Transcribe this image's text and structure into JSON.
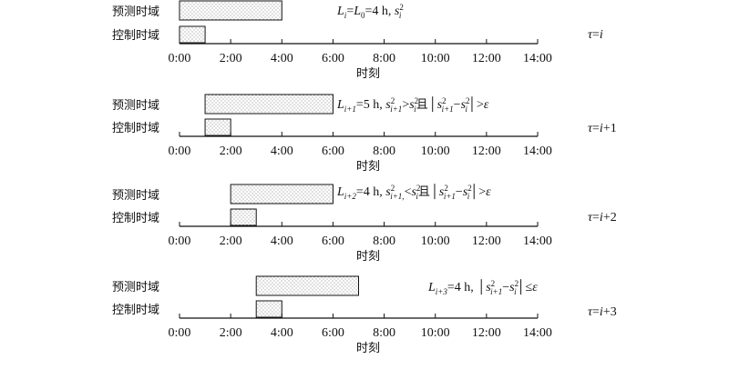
{
  "labels": {
    "prediction_horizon": "预测时域",
    "control_horizon": "控制时域",
    "axis_title": "时刻"
  },
  "ticks": [
    "0:00",
    "2:00",
    "4:00",
    "6:00",
    "8:00",
    "10:00",
    "12:00",
    "14:00"
  ],
  "axis_range_hours": [
    0,
    14
  ],
  "colors": {
    "stroke": "#111111",
    "dots": "#6a6a6a"
  },
  "panels": [
    {
      "prediction": {
        "start_h": 0,
        "end_h": 4
      },
      "control": {
        "start_h": 0,
        "end_h": 1
      },
      "condition": {
        "parts": [
          {
            "t": "L",
            "i": true
          },
          {
            "t": "i",
            "i": true,
            "sub": true
          },
          {
            "t": "=",
            "i": false
          },
          {
            "t": "L",
            "i": true
          },
          {
            "t": "0",
            "i": false,
            "sub": true
          },
          {
            "t": "=4 h, ",
            "i": false
          },
          {
            "t": "s",
            "i": true
          },
          {
            "t": "2",
            "i": false,
            "supsub": "i"
          }
        ]
      },
      "tau": {
        "parts": [
          {
            "t": "τ",
            "i": true
          },
          {
            "t": "=",
            "i": false
          },
          {
            "t": "i",
            "i": true
          }
        ]
      }
    },
    {
      "prediction": {
        "start_h": 1,
        "end_h": 6
      },
      "control": {
        "start_h": 1,
        "end_h": 2
      },
      "condition": {
        "parts": [
          {
            "t": "L",
            "i": true
          },
          {
            "t": "i+1",
            "i": true,
            "sub": true
          },
          {
            "t": "=5 h, ",
            "i": false
          },
          {
            "t": "s",
            "i": true
          },
          {
            "t": "2",
            "i": false,
            "supsub": "i+1"
          },
          {
            "t": ">",
            "i": false
          },
          {
            "t": "s",
            "i": true
          },
          {
            "t": "2",
            "i": false,
            "supsub": "i"
          },
          {
            "t": "且",
            "i": false,
            "cn": true
          },
          {
            "t": "│",
            "i": false
          },
          {
            "t": "s",
            "i": true
          },
          {
            "t": "2",
            "i": false,
            "supsub": "i+1"
          },
          {
            "t": "−",
            "i": false
          },
          {
            "t": "s",
            "i": true
          },
          {
            "t": "2",
            "i": false,
            "supsub": "i"
          },
          {
            "t": "│",
            "i": false
          },
          {
            "t": ">",
            "i": false
          },
          {
            "t": "ε",
            "i": true
          }
        ]
      },
      "tau": {
        "parts": [
          {
            "t": "τ",
            "i": true
          },
          {
            "t": "=",
            "i": false
          },
          {
            "t": "i",
            "i": true
          },
          {
            "t": "+1",
            "i": false
          }
        ]
      }
    },
    {
      "prediction": {
        "start_h": 2,
        "end_h": 6
      },
      "control": {
        "start_h": 2,
        "end_h": 3
      },
      "condition": {
        "parts": [
          {
            "t": "L",
            "i": true
          },
          {
            "t": "i+2",
            "i": true,
            "sub": true
          },
          {
            "t": "=4 h, ",
            "i": false
          },
          {
            "t": "s",
            "i": true
          },
          {
            "t": "2",
            "i": false,
            "supsub": "i+1,"
          },
          {
            "t": "<",
            "i": false
          },
          {
            "t": "s",
            "i": true
          },
          {
            "t": "2",
            "i": false,
            "supsub": "i"
          },
          {
            "t": "且",
            "i": false,
            "cn": true
          },
          {
            "t": "│",
            "i": false
          },
          {
            "t": "s",
            "i": true
          },
          {
            "t": "2",
            "i": false,
            "supsub": "i+1"
          },
          {
            "t": "−",
            "i": false
          },
          {
            "t": "s",
            "i": true
          },
          {
            "t": "2",
            "i": false,
            "supsub": "i"
          },
          {
            "t": "│",
            "i": false
          },
          {
            "t": ">",
            "i": false
          },
          {
            "t": "ε",
            "i": true
          }
        ]
      },
      "tau": {
        "parts": [
          {
            "t": "τ",
            "i": true
          },
          {
            "t": "=",
            "i": false
          },
          {
            "t": "i",
            "i": true
          },
          {
            "t": "+2",
            "i": false
          }
        ]
      }
    },
    {
      "prediction": {
        "start_h": 3,
        "end_h": 7
      },
      "control": {
        "start_h": 3,
        "end_h": 4
      },
      "condition": {
        "parts": [
          {
            "t": "L",
            "i": true
          },
          {
            "t": "i+3",
            "i": true,
            "sub": true
          },
          {
            "t": "=4 h, ",
            "i": false
          },
          {
            "t": "│",
            "i": false
          },
          {
            "t": "s",
            "i": true
          },
          {
            "t": "2",
            "i": false,
            "supsub": "i+1"
          },
          {
            "t": "−",
            "i": false
          },
          {
            "t": "s",
            "i": true
          },
          {
            "t": "2",
            "i": false,
            "supsub": "i"
          },
          {
            "t": "│",
            "i": false
          },
          {
            "t": "≤",
            "i": false
          },
          {
            "t": "ε",
            "i": true
          }
        ]
      },
      "tau": {
        "parts": [
          {
            "t": "τ",
            "i": true
          },
          {
            "t": "=",
            "i": false
          },
          {
            "t": "i",
            "i": true
          },
          {
            "t": "+3",
            "i": false
          }
        ]
      }
    }
  ]
}
